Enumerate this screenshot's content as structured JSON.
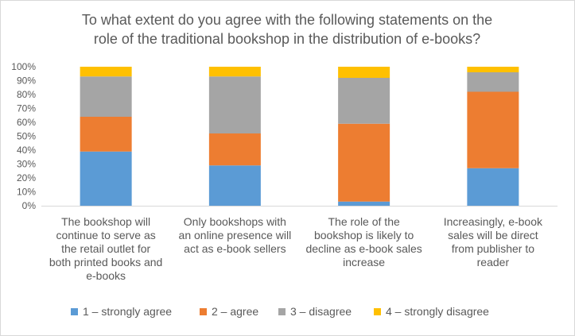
{
  "chart_data": {
    "type": "bar",
    "stacked": true,
    "percent": true,
    "title_lines": [
      "To what extent do you agree with the following statements on the",
      "role of the traditional bookshop in the distribution of e-books?"
    ],
    "categories": [
      [
        "The bookshop will",
        "continue to serve as",
        "the retail outlet for",
        "both printed books and",
        "e-books"
      ],
      [
        "Only bookshops with",
        "an online presence will",
        "act as e-book sellers"
      ],
      [
        "The role of the",
        "bookshop is likely to",
        "decline as e-book sales",
        "increase"
      ],
      [
        "Increasingly, e-book",
        "sales will be direct",
        "from publisher to",
        "reader"
      ]
    ],
    "series": [
      {
        "name": "1 – strongly agree",
        "color": "#5b9bd5",
        "values": [
          39,
          29,
          3,
          27
        ]
      },
      {
        "name": "2 – agree",
        "color": "#ed7d31",
        "values": [
          25,
          23,
          56,
          55
        ]
      },
      {
        "name": "3 – disagree",
        "color": "#a5a5a5",
        "values": [
          29,
          41,
          33,
          14
        ]
      },
      {
        "name": "4 – strongly disagree",
        "color": "#ffc000",
        "values": [
          7,
          7,
          8,
          4
        ]
      }
    ],
    "ylim": [
      0,
      100
    ],
    "yticks": [
      "0%",
      "10%",
      "20%",
      "30%",
      "40%",
      "50%",
      "60%",
      "70%",
      "80%",
      "90%",
      "100%"
    ],
    "grid": false,
    "legend_position": "bottom"
  }
}
